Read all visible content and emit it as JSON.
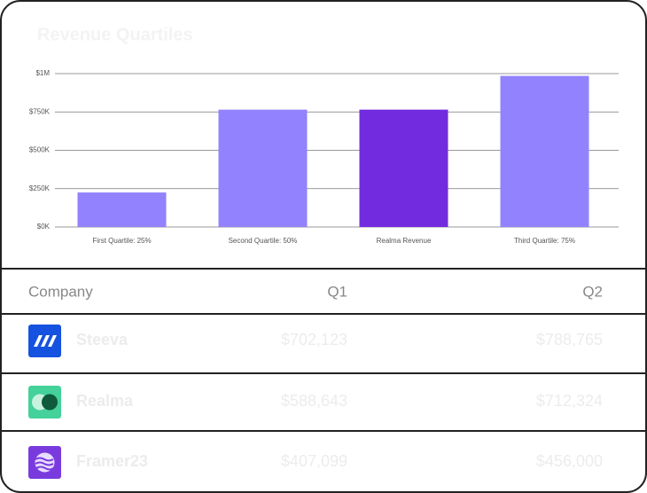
{
  "chart_data": {
    "type": "bar",
    "title": "Revenue Quartiles",
    "categories": [
      "First Quartile: 25%",
      "Second Quartile: 50%",
      "Realma Revenue",
      "Third Quartile: 75%"
    ],
    "values": [
      225000,
      765000,
      765000,
      985000
    ],
    "colors": [
      "#9282fd",
      "#9282fd",
      "#732bdf",
      "#9282fd"
    ],
    "ylim": [
      0,
      1000000
    ],
    "yticks": [
      {
        "value": 0,
        "label": "$0K"
      },
      {
        "value": 250000,
        "label": "$250K"
      },
      {
        "value": 500000,
        "label": "$500K"
      },
      {
        "value": 750000,
        "label": "$750K"
      },
      {
        "value": 1000000,
        "label": "$1M"
      }
    ],
    "grid": true
  },
  "table": {
    "header": [
      "Company",
      "Q1",
      "Q2"
    ],
    "rows": [
      [
        "Steeva",
        "$702,123",
        "$788,765"
      ],
      [
        "Realma",
        "$588,643",
        "$712,324"
      ],
      [
        "Framer23",
        "$407,099",
        "$456,000"
      ]
    ]
  }
}
